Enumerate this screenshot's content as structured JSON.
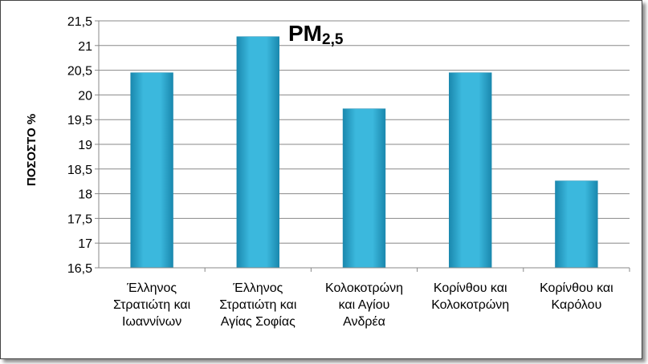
{
  "chart_data": {
    "type": "bar",
    "title": "PM",
    "title_subscript": "2,5",
    "ylabel": "ΠΟΣΟΣΤΟ %",
    "xlabel": "",
    "ylim": [
      16.5,
      21.5
    ],
    "yticks": [
      "16,5",
      "17",
      "17,5",
      "18",
      "18,5",
      "19",
      "19,5",
      "20",
      "20,5",
      "21",
      "21,5"
    ],
    "grid": true,
    "legend": "none",
    "categories": [
      [
        "Έλληνος",
        "Στρατιώτη και",
        "Ιωαννίνων"
      ],
      [
        "Έλληνος",
        "Στρατιώτη και",
        "Αγίας Σοφίας"
      ],
      [
        "Κολοκοτρώνη",
        "και Αγίου",
        "Ανδρέα"
      ],
      [
        "Κορίνθου και",
        "Κολοκοτρώνη"
      ],
      [
        "Κορίνθου και",
        "Καρόλου"
      ]
    ],
    "values": [
      20.45,
      21.18,
      19.72,
      20.45,
      18.26
    ],
    "bar_color": "#3BB8DD",
    "bar_color_dark": "#1A88AE"
  }
}
